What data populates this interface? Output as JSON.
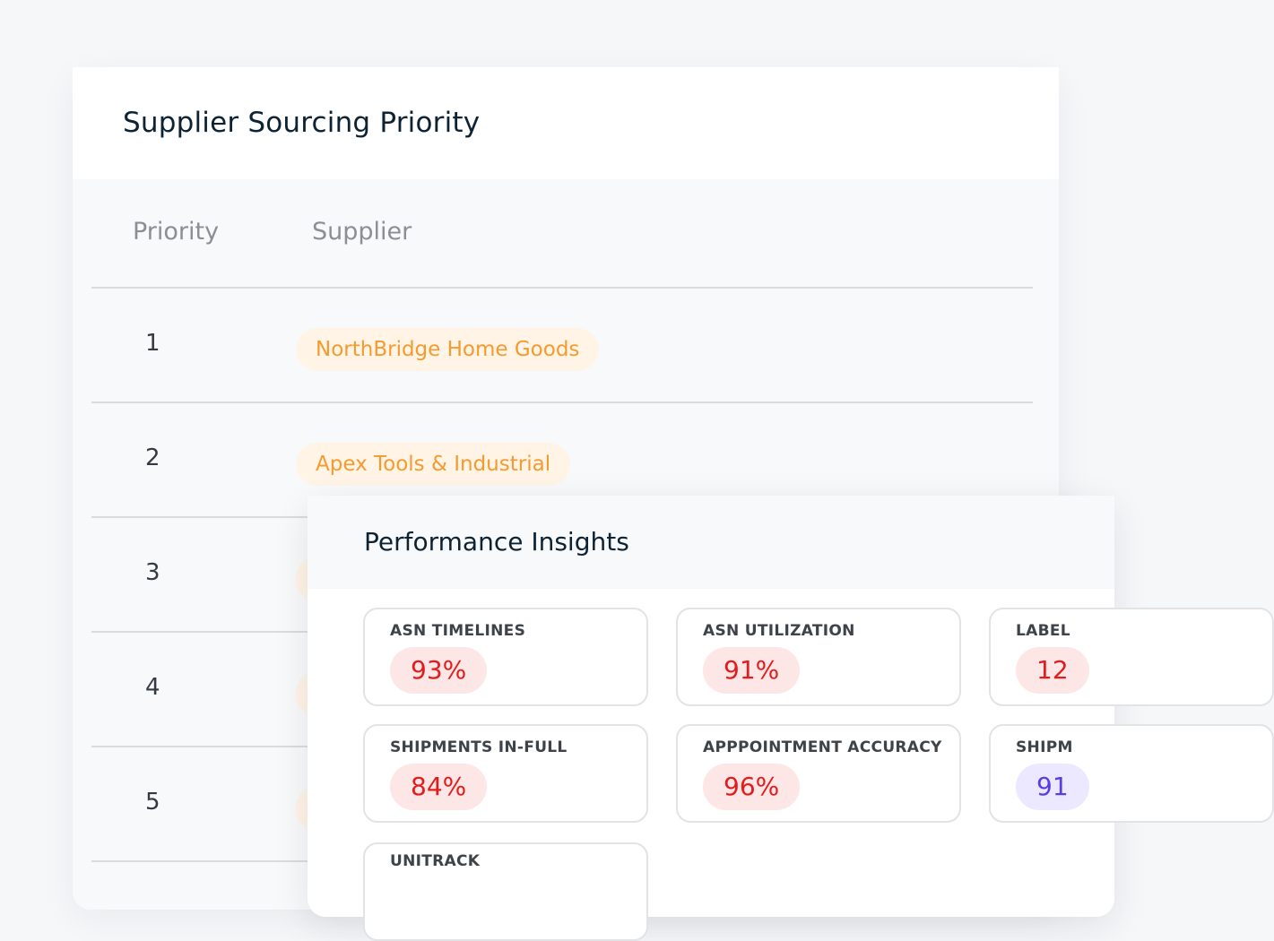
{
  "card": {
    "title": "Supplier Sourcing Priority"
  },
  "table": {
    "headers": {
      "priority": "Priority",
      "supplier": "Supplier"
    },
    "rows": [
      {
        "rank": "1",
        "supplier": "NorthBridge Home Goods"
      },
      {
        "rank": "2",
        "supplier": "Apex Tools & Industrial"
      },
      {
        "rank": "3",
        "supplier": ""
      },
      {
        "rank": "4",
        "supplier": ""
      },
      {
        "rank": "5",
        "supplier": ""
      }
    ]
  },
  "panel": {
    "title": "Performance Insights",
    "metrics": [
      {
        "label": "ASN TIMELINES",
        "value": "93%",
        "tone": "red"
      },
      {
        "label": "ASN UTILIZATION",
        "value": "91%",
        "tone": "red"
      },
      {
        "label": "LABEL",
        "value": "12",
        "tone": "red"
      },
      {
        "label": "SHIPMENTS IN-FULL",
        "value": "84%",
        "tone": "red"
      },
      {
        "label": "APPPOINTMENT ACCURACY",
        "value": "96%",
        "tone": "red"
      },
      {
        "label": "SHIPM",
        "value": "91",
        "tone": "purple"
      },
      {
        "label": "UNITRACK",
        "value": "",
        "tone": "red"
      }
    ]
  },
  "colors": {
    "accent_orange": "#f59a2e",
    "pill_orange_bg": "#fff4e6",
    "metric_red": "#e21c1c",
    "metric_red_bg": "#fde6e6",
    "metric_purple": "#5a3ce6",
    "metric_purple_bg": "#ebe8ff"
  }
}
